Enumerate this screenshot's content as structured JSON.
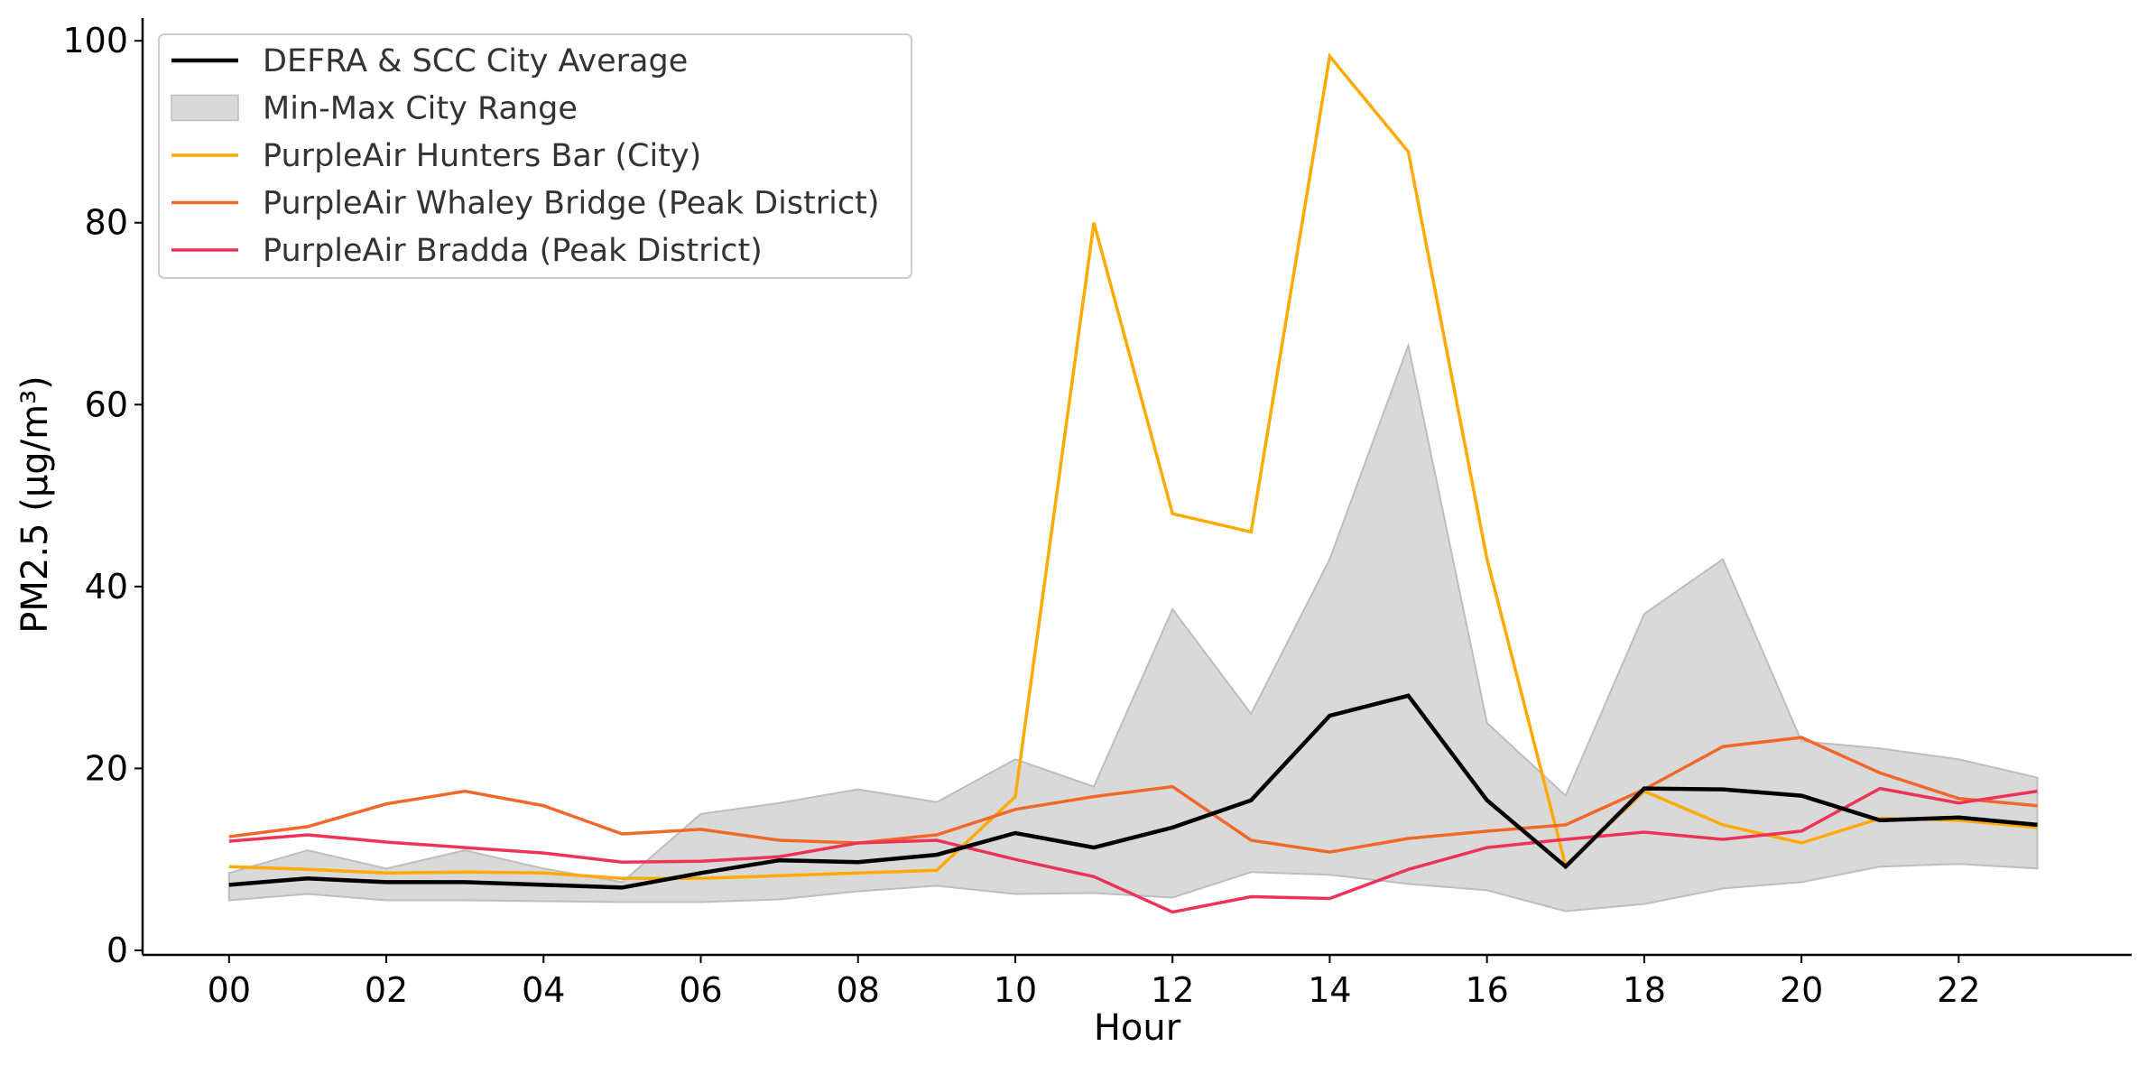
{
  "chart_data": {
    "type": "line",
    "title": "",
    "xlabel": "Hour",
    "ylabel": "PM2.5 (µg/m³)",
    "x": [
      0,
      1,
      2,
      3,
      4,
      5,
      6,
      7,
      8,
      9,
      10,
      11,
      12,
      13,
      14,
      15,
      16,
      17,
      18,
      19,
      20,
      21,
      22,
      23
    ],
    "x_tick_values": [
      0,
      2,
      4,
      6,
      8,
      10,
      12,
      14,
      16,
      18,
      20,
      22
    ],
    "x_tick_labels": [
      "00",
      "02",
      "04",
      "06",
      "08",
      "10",
      "12",
      "14",
      "16",
      "18",
      "20",
      "22"
    ],
    "xlim": [
      -1.1,
      24.2
    ],
    "ylim": [
      -0.5,
      102.5
    ],
    "y_ticks": [
      0,
      20,
      40,
      60,
      80,
      100
    ],
    "grid": false,
    "legend_position": "top-left",
    "band": {
      "name": "Min-Max City Range",
      "color": "#d9d9d9",
      "edge_color": "#bdbdbd",
      "min": [
        5.5,
        6.2,
        5.5,
        5.5,
        5.4,
        5.3,
        5.3,
        5.6,
        6.5,
        7.1,
        6.2,
        6.3,
        5.8,
        8.6,
        8.3,
        7.3,
        6.6,
        4.3,
        5.1,
        6.8,
        7.5,
        9.2,
        9.5,
        9.0
      ],
      "max": [
        8.5,
        11.0,
        9.0,
        11.0,
        9.0,
        7.5,
        15.0,
        16.2,
        17.7,
        16.3,
        21.0,
        18.0,
        37.5,
        26.0,
        43.0,
        66.5,
        25.0,
        17.0,
        37.0,
        43.0,
        23.0,
        22.2,
        21.0,
        19.0
      ]
    },
    "series": [
      {
        "name": "DEFRA & SCC City Average",
        "color": "#000000",
        "width": 4.5,
        "values": [
          7.2,
          7.9,
          7.5,
          7.5,
          7.2,
          6.9,
          8.5,
          9.9,
          9.7,
          10.5,
          12.9,
          11.3,
          13.5,
          16.5,
          25.8,
          28.0,
          16.5,
          9.2,
          17.8,
          17.7,
          17.0,
          14.3,
          14.6,
          13.8
        ]
      },
      {
        "name": "PurpleAir Hunters Bar (City)",
        "color": "#ffaa00",
        "width": 3.5,
        "values": [
          9.2,
          8.9,
          8.5,
          8.6,
          8.5,
          7.9,
          7.9,
          8.2,
          8.5,
          8.8,
          16.9,
          80.0,
          48.0,
          46.0,
          98.3,
          87.8,
          43.0,
          9.3,
          17.5,
          13.8,
          11.8,
          14.5,
          14.3,
          13.5
        ]
      },
      {
        "name": "PurpleAir Whaley Bridge (Peak District)",
        "color": "#f2672a",
        "width": 3.5,
        "values": [
          12.5,
          13.6,
          16.1,
          17.5,
          15.9,
          12.8,
          13.3,
          12.1,
          11.8,
          12.7,
          15.5,
          16.9,
          18.0,
          12.1,
          10.8,
          12.3,
          13.1,
          13.8,
          17.7,
          22.4,
          23.4,
          19.5,
          16.7,
          15.9
        ]
      },
      {
        "name": "PurpleAir Bradda (Peak District)",
        "color": "#ee3358",
        "width": 3.5,
        "values": [
          12.0,
          12.7,
          11.9,
          11.3,
          10.7,
          9.7,
          9.8,
          10.3,
          11.8,
          12.1,
          10.0,
          8.1,
          4.2,
          5.9,
          5.7,
          8.9,
          11.3,
          12.2,
          13.0,
          12.2,
          13.1,
          17.8,
          16.2,
          17.5
        ]
      }
    ]
  }
}
